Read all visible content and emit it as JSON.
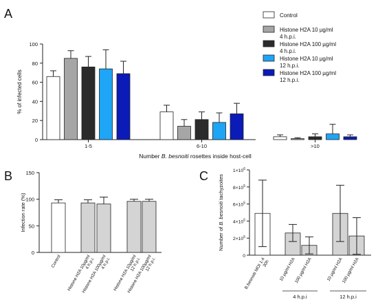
{
  "colors": {
    "axis": "#222222",
    "bar_outline": "#222222",
    "control": "#ffffff",
    "gray": "#a6a6a6",
    "dark": "#2b2b2b",
    "light_blue": "#1ea5f5",
    "navy": "#0b1bb8",
    "panel_gray": "#d4d4d4"
  },
  "chart_data": [
    {
      "panel": "A",
      "type": "bar",
      "ylabel": "% of infected cells",
      "xlabel_parts": [
        "Number ",
        "B. besnoiti",
        " rosettes inside host-cell"
      ],
      "ylim": [
        0,
        100
      ],
      "yticks": [
        0,
        20,
        40,
        60,
        80,
        100
      ],
      "categories": [
        "1-5",
        "6-10",
        ">10"
      ],
      "legend": [
        {
          "label": [
            "Control"
          ],
          "color_key": "control"
        },
        {
          "label": [
            "Histone H2A 10 µg/ml",
            "4 h.p.i."
          ],
          "color_key": "gray"
        },
        {
          "label": [
            "Histone H2A 100 µg/ml",
            "4 h.p.i."
          ],
          "color_key": "dark"
        },
        {
          "label": [
            "Histone H2A 10 µg/ml",
            "12 h.p.i."
          ],
          "color_key": "light_blue"
        },
        {
          "label": [
            "Histone H2A 100 µg/ml",
            "12 h.p.i."
          ],
          "color_key": "navy"
        }
      ],
      "series": [
        {
          "values": [
            66,
            29,
            3
          ],
          "errors": [
            6,
            7,
            2
          ],
          "color_key": "control"
        },
        {
          "values": [
            85,
            14,
            1
          ],
          "errors": [
            8,
            7,
            1
          ],
          "color_key": "gray"
        },
        {
          "values": [
            76,
            21,
            3
          ],
          "errors": [
            11,
            8,
            3
          ],
          "color_key": "dark"
        },
        {
          "values": [
            74,
            18,
            6
          ],
          "errors": [
            20,
            10,
            10
          ],
          "color_key": "light_blue"
        },
        {
          "values": [
            69,
            27,
            3
          ],
          "errors": [
            13,
            11,
            2
          ],
          "color_key": "navy"
        }
      ]
    },
    {
      "panel": "B",
      "type": "bar",
      "ylabel": "Infection rate (%)",
      "ylim": [
        0,
        150
      ],
      "yticks": [
        0,
        50,
        100,
        150
      ],
      "bars": [
        {
          "label": [
            "Control"
          ],
          "value": 93,
          "error": 6,
          "color_key": "control",
          "group": 0
        },
        {
          "label": [
            "Histone H2A 10µg/ml",
            "4 h.p.i."
          ],
          "value": 93,
          "error": 6,
          "color_key": "panel_gray",
          "group": 1
        },
        {
          "label": [
            "Histone H2A 100µg/ml",
            "4 h.p.i."
          ],
          "value": 91,
          "error": 13,
          "color_key": "panel_gray",
          "group": 1
        },
        {
          "label": [
            "Histone H2A 10µg/ml",
            "12 h.p.i."
          ],
          "value": 96,
          "error": 4,
          "color_key": "panel_gray",
          "group": 2
        },
        {
          "label": [
            "Histone H2A 100µg/ml",
            "12 h.p.i."
          ],
          "value": 96,
          "error": 4,
          "color_key": "panel_gray",
          "group": 2
        }
      ]
    },
    {
      "panel": "C",
      "type": "bar",
      "ylabel_parts": [
        "Number of ",
        "B. besnoiti",
        " tachyzoites"
      ],
      "ylim": [
        0,
        1000000
      ],
      "yticks": [
        0,
        200000,
        400000,
        600000,
        800000,
        1000000
      ],
      "ytick_labels": [
        [
          "0",
          ""
        ],
        [
          "2×10",
          "5"
        ],
        [
          "4×10",
          "5"
        ],
        [
          "6×10",
          "5"
        ],
        [
          "8×10",
          "5"
        ],
        [
          "1×10",
          "6"
        ]
      ],
      "bars": [
        {
          "label": [
            "B.besnoiti MOI 1:4",
            "30h"
          ],
          "value": 490000,
          "upper": 880000,
          "lower": 100000,
          "color_key": "control",
          "group": 0
        },
        {
          "label": [
            "10 µg/ml H2A"
          ],
          "value": 260000,
          "upper": 360000,
          "lower": 160000,
          "color_key": "panel_gray",
          "group": 1
        },
        {
          "label": [
            "100 µg/ml H2A"
          ],
          "value": 115000,
          "upper": 215000,
          "lower": 15000,
          "color_key": "panel_gray",
          "group": 1
        },
        {
          "label": [
            "10 µg/ml H2A"
          ],
          "value": 490000,
          "upper": 820000,
          "lower": 160000,
          "color_key": "panel_gray",
          "group": 2
        },
        {
          "label": [
            "100 µg/ml H2A"
          ],
          "value": 225000,
          "upper": 440000,
          "lower": 10000,
          "color_key": "panel_gray",
          "group": 2
        }
      ],
      "group_labels": [
        {
          "text": "4 h.p.i",
          "group": 1
        },
        {
          "text": "12 h.p.i",
          "group": 2
        }
      ]
    }
  ],
  "panel_letters": {
    "a": "A",
    "b": "B",
    "c": "C"
  }
}
